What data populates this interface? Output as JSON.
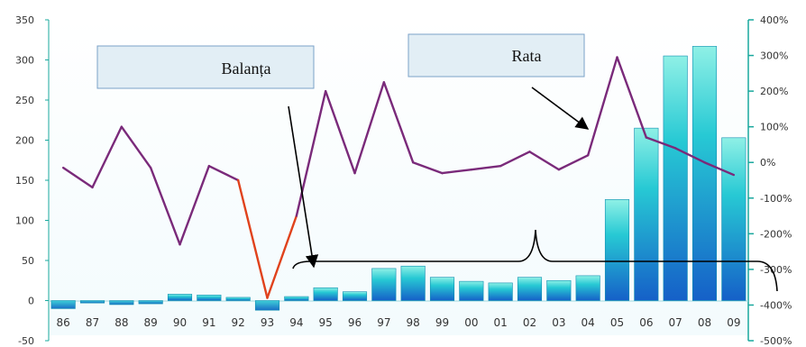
{
  "chart_data": {
    "type": "bar+line",
    "categories": [
      "86",
      "87",
      "88",
      "89",
      "90",
      "91",
      "92",
      "93",
      "94",
      "95",
      "96",
      "97",
      "98",
      "99",
      "00",
      "01",
      "02",
      "03",
      "04",
      "05",
      "06",
      "07",
      "08",
      "09"
    ],
    "series": [
      {
        "name": "Balanța",
        "type": "bar",
        "axis": "left",
        "values": [
          -10,
          -3,
          -5,
          -4,
          8,
          7,
          4,
          -12,
          5,
          16,
          11,
          40,
          43,
          29,
          24,
          22,
          29,
          25,
          31,
          126,
          215,
          305,
          317,
          203
        ]
      },
      {
        "name": "Rata",
        "type": "line",
        "axis": "right",
        "values": [
          -15,
          -70,
          100,
          -15,
          -230,
          -10,
          -50,
          -380,
          -150,
          200,
          -30,
          225,
          0,
          -30,
          -20,
          -10,
          30,
          -20,
          20,
          295,
          70,
          40,
          0,
          -35
        ]
      }
    ],
    "y_left": {
      "min": -50,
      "max": 350,
      "ticks": [
        "-50",
        "0",
        "50",
        "100",
        "150",
        "200",
        "250",
        "300",
        "350"
      ]
    },
    "y_right": {
      "min": -500,
      "max": 400,
      "ticks": [
        "-500%",
        "-400%",
        "-300%",
        "-200%",
        "-100%",
        "0%",
        "100%",
        "200%",
        "300%",
        "400%"
      ]
    },
    "grid": false,
    "colors": {
      "bar": "#1fb7cf",
      "line": "#7a2a7a",
      "line_low": "#e0421c",
      "axis": "#19a89d",
      "annotation_box": "#e2eef5"
    },
    "annotations": [
      {
        "text": "Balanța",
        "arrow_to_category": "94"
      },
      {
        "text": "Rata",
        "arrow_to_category": "04"
      }
    ]
  }
}
